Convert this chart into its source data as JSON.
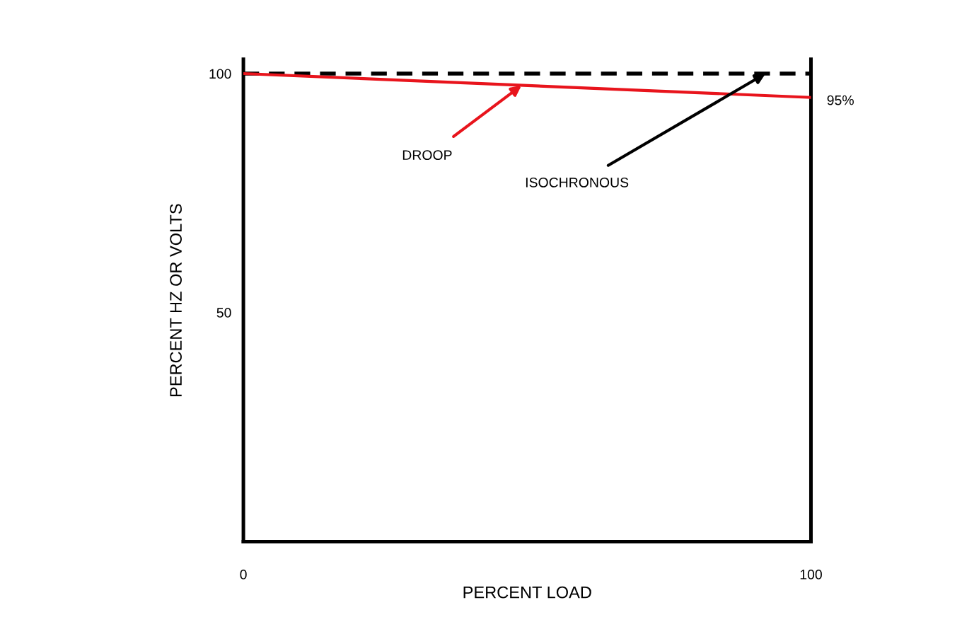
{
  "chart_data": {
    "type": "line",
    "xlabel": "PERCENT LOAD",
    "ylabel": "PERCENT HZ OR VOLTS",
    "x": [
      0,
      100
    ],
    "xlim": [
      0,
      100
    ],
    "ylim": [
      2,
      103
    ],
    "xticks": [
      0,
      100
    ],
    "yticks": [
      50,
      100
    ],
    "grid": false,
    "marker": "none",
    "series": [
      {
        "color": "#e8141c",
        "values": [
          100,
          95
        ],
        "line_style": "solid",
        "value_labels": [
          null,
          "95%"
        ]
      },
      {
        "color": "#000000",
        "values": [
          100,
          100
        ],
        "line_style": "dashed"
      }
    ],
    "annotations": [
      {
        "text": "DROOP",
        "x": 49,
        "y": 97.5
      },
      {
        "text": "ISOCHRONOUS",
        "x": 92,
        "y": 100
      }
    ]
  }
}
